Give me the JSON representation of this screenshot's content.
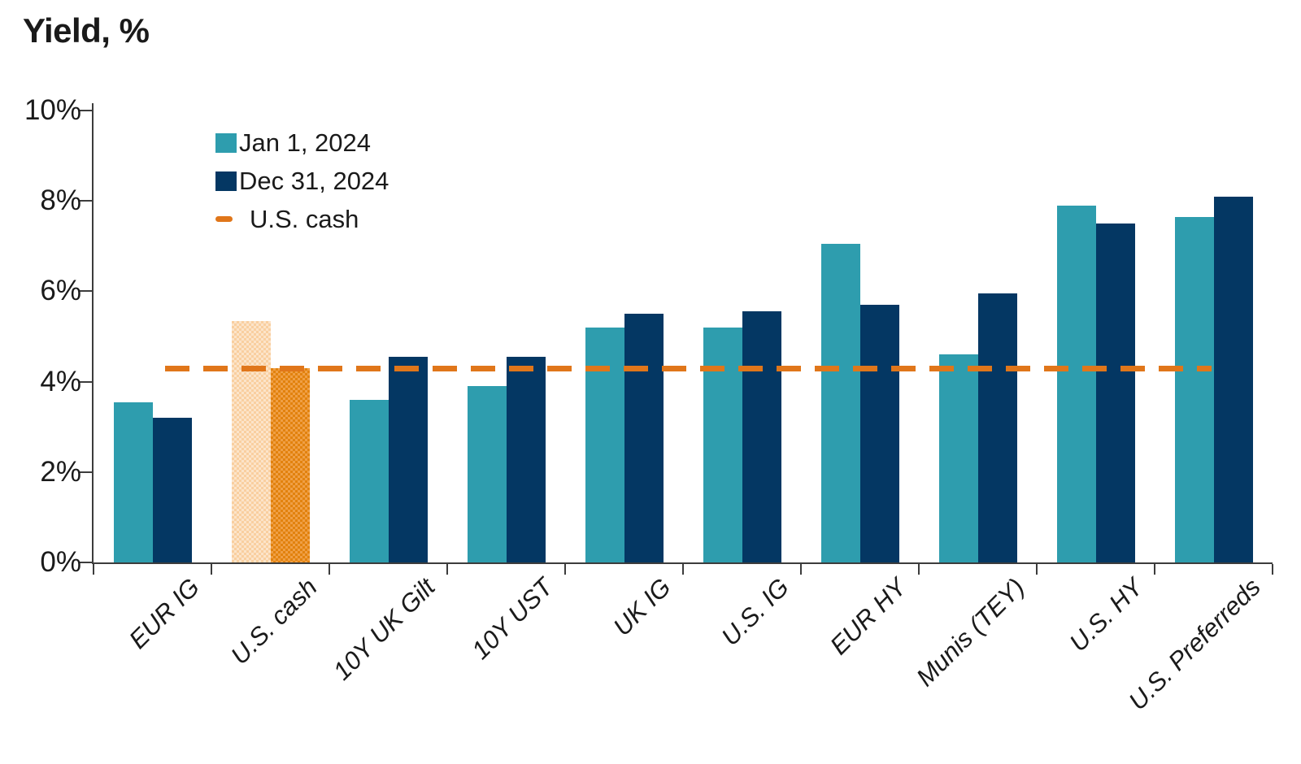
{
  "chart_data": {
    "type": "bar",
    "title": "Yield, %",
    "categories": [
      "EUR IG",
      "U.S. cash",
      "10Y UK Gilt",
      "10Y UST",
      "UK IG",
      "U.S. IG",
      "EUR HY",
      "Munis (TEY)",
      "U.S. HY",
      "U.S. Preferreds"
    ],
    "series": [
      {
        "name": "Jan 1, 2024",
        "color": "#2E9DAE",
        "values": [
          3.55,
          5.35,
          3.6,
          3.9,
          5.2,
          5.2,
          7.05,
          4.6,
          7.9,
          7.65
        ]
      },
      {
        "name": "Dec 31, 2024",
        "color": "#043763",
        "values": [
          3.2,
          4.3,
          4.55,
          4.55,
          5.5,
          5.55,
          5.7,
          5.95,
          7.5,
          8.1
        ]
      }
    ],
    "reference_line": {
      "label": "U.S. cash",
      "value": 4.3,
      "color": "#E0761A",
      "style": "dashed"
    },
    "highlight_category": "U.S. cash",
    "highlight_colors": {
      "jan_base": "#F9CFA0",
      "jan_alt": "#FCE4C9",
      "dec_base": "#E2820E",
      "dec_alt": "#EF9F45"
    },
    "y_axis": {
      "ticks": [
        "0%",
        "2%",
        "4%",
        "6%",
        "8%",
        "10%"
      ],
      "min": 0,
      "max": 10,
      "step": 2,
      "unit": "%"
    },
    "x_axis": {
      "label_rotation_deg": -45,
      "label_style": "italic"
    },
    "grid": false,
    "legend_position": "top-left-inside",
    "axis_color": "#3c3c3c",
    "background_color": "#ffffff",
    "text_color": "#1a1a1a"
  }
}
